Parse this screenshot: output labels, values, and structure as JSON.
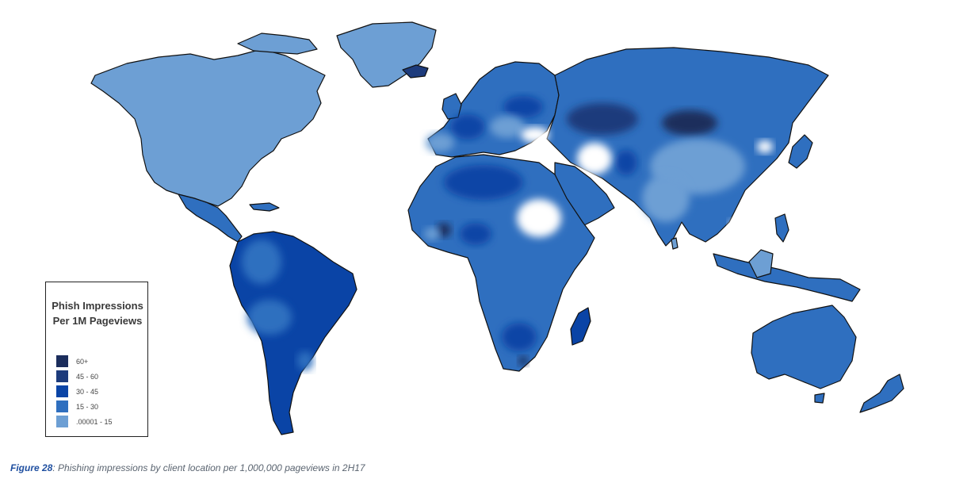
{
  "legend": {
    "title_line1": "Phish Impressions",
    "title_line2": "Per 1M Pageviews",
    "items": [
      {
        "label": "60+",
        "color": "#1b2d5c"
      },
      {
        "label": "45 - 60",
        "color": "#1d3b7c"
      },
      {
        "label": "30 - 45",
        "color": "#0a44a6"
      },
      {
        "label": "15 - 30",
        "color": "#2f6fbf"
      },
      {
        "label": ".00001 - 15",
        "color": "#6d9fd4"
      }
    ]
  },
  "caption": {
    "figure": "Figure 28",
    "text": ": Phishing impressions by client location per 1,000,000 pageviews in 2H17"
  },
  "map_colors": {
    "light": "#6d9fd4",
    "medium": "#2f6fbf",
    "strong": "#0a44a6",
    "dark": "#1d3b7c",
    "darkest": "#1b2d5c",
    "nodata": "#ffffff"
  }
}
